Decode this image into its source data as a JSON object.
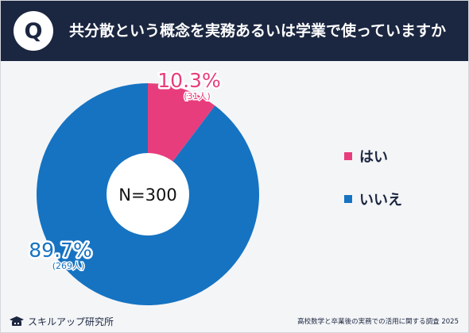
{
  "header": {
    "question_badge": "Q",
    "title": "共分散という概念を実務あるいは学業で使っていますか"
  },
  "chart_data": {
    "type": "pie",
    "title": "共分散という概念を実務あるいは学業で使っていますか",
    "center_label": "N=300",
    "slices": [
      {
        "label": "はい",
        "percent": 10.3,
        "percent_text": "10.3%",
        "count_text": "(31人)",
        "color": "#e83d7c"
      },
      {
        "label": "いいえ",
        "percent": 89.7,
        "percent_text": "89.7%",
        "count_text": "(269人)",
        "color": "#1673c2"
      }
    ],
    "legend_position": "right"
  },
  "footer": {
    "brand": "スキルアップ研究所",
    "source": "高校数学と卒業後の実務での活用に関する調査 2025"
  }
}
